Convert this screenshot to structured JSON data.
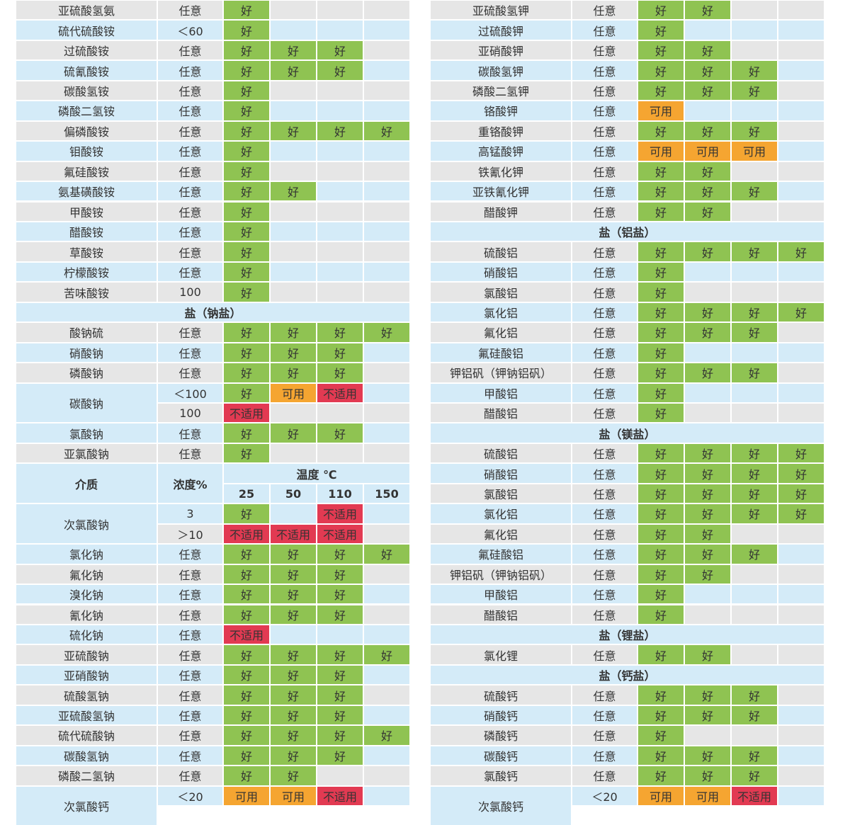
{
  "good": "好",
  "usable": "可用",
  "unsuitable": "不适用",
  "left": {
    "rows": [
      {
        "name": "亚硫酸氢氨",
        "conc": "任意",
        "cells": [
          "好"
        ]
      },
      {
        "name": "硫代硫酸铵",
        "conc": "＜60",
        "cells": [
          "好"
        ]
      },
      {
        "name": "过硫酸铵",
        "conc": "任意",
        "cells": [
          "好",
          "好",
          "好"
        ]
      },
      {
        "name": "硫氰酸铵",
        "conc": "任意",
        "cells": [
          "好",
          "好",
          "好"
        ]
      },
      {
        "name": "碳酸氢铵",
        "conc": "任意",
        "cells": [
          "好"
        ]
      },
      {
        "name": "磷酸二氢铵",
        "conc": "任意",
        "cells": [
          "好"
        ]
      },
      {
        "name": "偏磷酸铵",
        "conc": "任意",
        "cells": [
          "好",
          "好",
          "好",
          "好"
        ]
      },
      {
        "name": "钼酸铵",
        "conc": "任意",
        "cells": [
          "好"
        ]
      },
      {
        "name": "氟硅酸铵",
        "conc": "任意",
        "cells": [
          "好"
        ]
      },
      {
        "name": "氨基磺酸铵",
        "conc": "任意",
        "cells": [
          "好",
          "好"
        ]
      },
      {
        "name": "甲酸铵",
        "conc": "任意",
        "cells": [
          "好"
        ]
      },
      {
        "name": "醋酸铵",
        "conc": "任意",
        "cells": [
          "好"
        ]
      },
      {
        "name": "草酸铵",
        "conc": "任意",
        "cells": [
          "好"
        ]
      },
      {
        "name": "柠檬酸铵",
        "conc": "任意",
        "cells": [
          "好"
        ]
      },
      {
        "name": "苦味酸铵",
        "conc": "100",
        "cells": [
          "好"
        ]
      },
      {
        "section": "盐（钠盐）"
      },
      {
        "name": "酸钠硫",
        "conc": "任意",
        "cells": [
          "好",
          "好",
          "好",
          "好"
        ]
      },
      {
        "name": "硝酸钠",
        "conc": "任意",
        "cells": [
          "好",
          "好",
          "好"
        ]
      },
      {
        "name": "磷酸钠",
        "conc": "任意",
        "cells": [
          "好",
          "好",
          "好"
        ]
      },
      {
        "name": "碳酸钠",
        "span": 2,
        "conc": "＜100",
        "cells": [
          "好",
          "可用",
          "不适用"
        ]
      },
      {
        "conc": "100",
        "cells": [
          "不适用"
        ]
      },
      {
        "name": "氯酸钠",
        "conc": "任意",
        "cells": [
          "好",
          "好",
          "好"
        ]
      },
      {
        "name": "亚氯酸钠",
        "conc": "任意",
        "cells": [
          "好"
        ]
      },
      {
        "header": {
          "medium": "介质",
          "conc": "浓度%",
          "temp": "温度 ℃",
          "temps": [
            "25",
            "50",
            "110",
            "150"
          ]
        }
      },
      {
        "name": "次氯酸钠",
        "span": 2,
        "conc": "3",
        "cells": [
          "好",
          null,
          "不适用"
        ]
      },
      {
        "conc": "＞10",
        "cells": [
          "不适用",
          "不适用",
          "不适用"
        ]
      },
      {
        "name": "氯化钠",
        "conc": "任意",
        "cells": [
          "好",
          "好",
          "好",
          "好"
        ]
      },
      {
        "name": "氟化钠",
        "conc": "任意",
        "cells": [
          "好",
          "好",
          "好"
        ]
      },
      {
        "name": "溴化钠",
        "conc": "任意",
        "cells": [
          "好",
          "好",
          "好"
        ]
      },
      {
        "name": "氰化钠",
        "conc": "任意",
        "cells": [
          "好",
          "好",
          "好"
        ]
      },
      {
        "name": "硫化钠",
        "conc": "任意",
        "cells": [
          "不适用"
        ]
      },
      {
        "name": "亚硫酸钠",
        "conc": "任意",
        "cells": [
          "好",
          "好",
          "好",
          "好"
        ]
      },
      {
        "name": "亚硝酸钠",
        "conc": "任意",
        "cells": [
          "好",
          "好",
          "好"
        ]
      },
      {
        "name": "硫酸氢钠",
        "conc": "任意",
        "cells": [
          "好",
          "好",
          "好"
        ]
      },
      {
        "name": "亚硫酸氢钠",
        "conc": "任意",
        "cells": [
          "好",
          "好",
          "好"
        ]
      },
      {
        "name": "硫代硫酸钠",
        "conc": "任意",
        "cells": [
          "好",
          "好",
          "好",
          "好"
        ]
      },
      {
        "name": "碳酸氢钠",
        "conc": "任意",
        "cells": [
          "好",
          "好",
          "好"
        ]
      },
      {
        "name": "磷酸二氢钠",
        "conc": "任意",
        "cells": [
          "好",
          "好"
        ]
      },
      {
        "name": "次氯酸钙",
        "span": 2,
        "conc": "＜20",
        "cells": [
          "可用",
          "可用",
          "不适用"
        ]
      }
    ]
  },
  "right": {
    "rows": [
      {
        "name": "亚硫酸氢钾",
        "conc": "任意",
        "cells": [
          "好",
          "好"
        ]
      },
      {
        "name": "过硫酸钾",
        "conc": "任意",
        "cells": [
          "好"
        ]
      },
      {
        "name": "亚硝酸钾",
        "conc": "任意",
        "cells": [
          "好",
          "好"
        ]
      },
      {
        "name": "碳酸氢钾",
        "conc": "任意",
        "cells": [
          "好",
          "好",
          "好"
        ]
      },
      {
        "name": "磷酸二氢钾",
        "conc": "任意",
        "cells": [
          "好",
          "好",
          "好"
        ]
      },
      {
        "name": "铬酸钾",
        "conc": "任意",
        "cells": [
          "可用"
        ]
      },
      {
        "name": "重铬酸钾",
        "conc": "任意",
        "cells": [
          "好",
          "好",
          "好"
        ]
      },
      {
        "name": "高锰酸钾",
        "conc": "任意",
        "cells": [
          "可用",
          "可用",
          "可用"
        ]
      },
      {
        "name": "铁氰化钾",
        "conc": "任意",
        "cells": [
          "好",
          "好"
        ]
      },
      {
        "name": "亚铁氰化钾",
        "conc": "任意",
        "cells": [
          "好",
          "好",
          "好"
        ]
      },
      {
        "name": "醋酸钾",
        "conc": "任意",
        "cells": [
          "好",
          "好"
        ]
      },
      {
        "section": "盐（铝盐）"
      },
      {
        "name": "硫酸铝",
        "conc": "任意",
        "cells": [
          "好",
          "好",
          "好",
          "好"
        ]
      },
      {
        "name": "硝酸铝",
        "conc": "任意",
        "cells": [
          "好"
        ]
      },
      {
        "name": "氯酸铝",
        "conc": "任意",
        "cells": [
          "好"
        ]
      },
      {
        "name": "氯化铝",
        "conc": "任意",
        "cells": [
          "好",
          "好",
          "好",
          "好"
        ]
      },
      {
        "name": "氟化铝",
        "conc": "任意",
        "cells": [
          "好",
          "好",
          "好"
        ]
      },
      {
        "name": "氟硅酸铝",
        "conc": "任意",
        "cells": [
          "好"
        ]
      },
      {
        "name": "钾铝矾（钾钠铝矾）",
        "conc": "任意",
        "cells": [
          "好",
          "好",
          "好"
        ]
      },
      {
        "name": "甲酸铝",
        "conc": "任意",
        "cells": [
          "好"
        ]
      },
      {
        "name": "醋酸铝",
        "conc": "任意",
        "cells": [
          "好"
        ]
      },
      {
        "section": "盐（镁盐）"
      },
      {
        "name": "硫酸铝",
        "conc": "任意",
        "cells": [
          "好",
          "好",
          "好",
          "好"
        ]
      },
      {
        "name": "硝酸铝",
        "conc": "任意",
        "cells": [
          "好",
          "好",
          "好",
          "好"
        ]
      },
      {
        "name": "氯酸铝",
        "conc": "任意",
        "cells": [
          "好",
          "好",
          "好",
          "好"
        ]
      },
      {
        "name": "氯化铝",
        "conc": "任意",
        "cells": [
          "好",
          "好",
          "好",
          "好"
        ]
      },
      {
        "name": "氟化铝",
        "conc": "任意",
        "cells": [
          "好",
          "好"
        ]
      },
      {
        "name": "氟硅酸铝",
        "conc": "任意",
        "cells": [
          "好",
          "好",
          "好"
        ]
      },
      {
        "name": "钾铝矾（钾钠铝矾）",
        "conc": "任意",
        "cells": [
          "好",
          "好"
        ]
      },
      {
        "name": "甲酸铝",
        "conc": "任意",
        "cells": [
          "好"
        ]
      },
      {
        "name": "醋酸铝",
        "conc": "任意",
        "cells": [
          "好"
        ]
      },
      {
        "section": "盐（锂盐）"
      },
      {
        "name": "氯化锂",
        "conc": "任意",
        "cells": [
          "好",
          "好"
        ]
      },
      {
        "section": "盐（钙盐）"
      },
      {
        "name": "硫酸钙",
        "conc": "任意",
        "cells": [
          "好",
          "好",
          "好"
        ]
      },
      {
        "name": "硝酸钙",
        "conc": "任意",
        "cells": [
          "好",
          "好",
          "好"
        ]
      },
      {
        "name": "磷酸钙",
        "conc": "任意",
        "cells": [
          "好"
        ]
      },
      {
        "name": "碳酸钙",
        "conc": "任意",
        "cells": [
          "好",
          "好",
          "好"
        ]
      },
      {
        "name": "氯酸钙",
        "conc": "任意",
        "cells": [
          "好",
          "好",
          "好"
        ]
      },
      {
        "name": "次氯酸钙",
        "span": 2,
        "conc": "＜20",
        "cells": [
          "可用",
          "可用",
          "不适用"
        ]
      }
    ]
  }
}
